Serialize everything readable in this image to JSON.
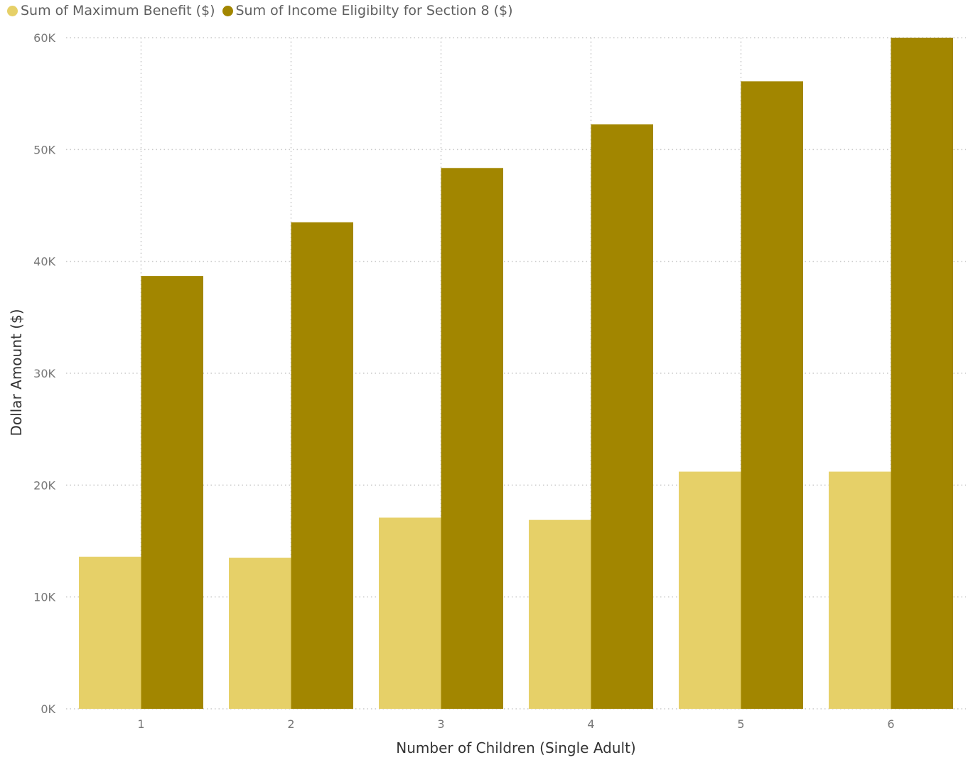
{
  "chart_data": {
    "type": "bar",
    "categories": [
      "1",
      "2",
      "3",
      "4",
      "5",
      "6"
    ],
    "series": [
      {
        "name": "Sum of Maximum Benefit ($)",
        "color": "#E6D068",
        "values": [
          13600,
          13500,
          17100,
          16900,
          21200,
          21200
        ]
      },
      {
        "name": "Sum of Income Eligibilty for Section 8 ($)",
        "color": "#A28600",
        "values": [
          38700,
          43500,
          48350,
          52250,
          56100,
          60000
        ]
      }
    ],
    "xlabel": "Number of Children (Single Adult)",
    "ylabel": "Dollar Amount ($)",
    "ylim": [
      0,
      60000
    ],
    "yticks": [
      "0K",
      "10K",
      "20K",
      "30K",
      "40K",
      "50K",
      "60K"
    ],
    "grid": true,
    "legend_position": "top-left"
  }
}
